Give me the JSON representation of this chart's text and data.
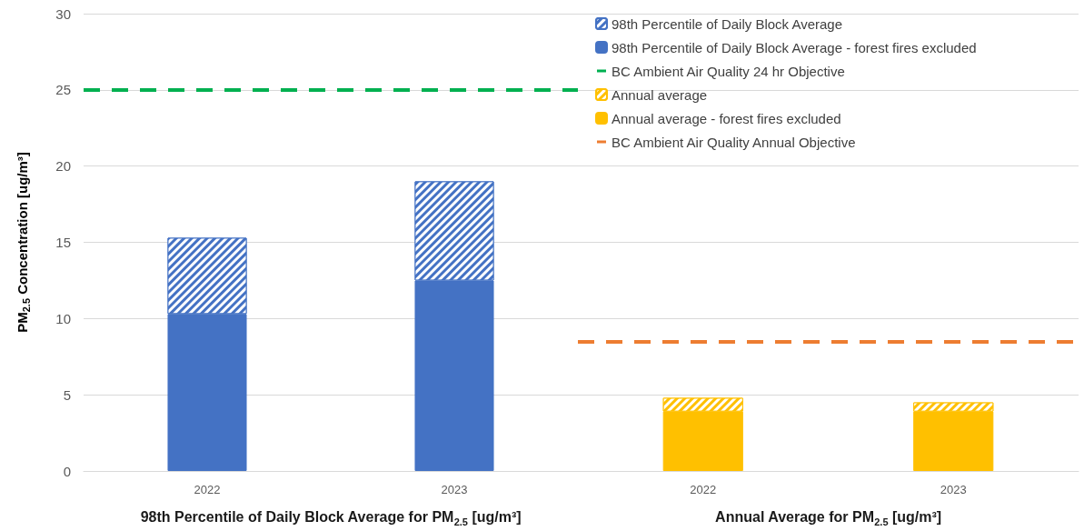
{
  "chart_data": [
    {
      "type": "bar",
      "stacked": true,
      "categories": [
        "2022",
        "2023"
      ],
      "xlabel": "98th Percentile of Daily Block Average for PM$_{2.5}$ [ug/m³]",
      "ylabel": "PM$_{2.5}$ Concentration [ug/m³]",
      "series": [
        {
          "name": "98th Percentile of Daily Block Average - forest fires excluded",
          "color": "#4472c4",
          "values": [
            10.3,
            12.5
          ]
        },
        {
          "name": "98th Percentile of Daily Block Average",
          "color": "#4472c4",
          "values": [
            5,
            6.5
          ]
        }
      ],
      "ylim": [
        0,
        30
      ],
      "yticks": [
        0,
        5,
        10,
        15,
        20,
        25,
        30
      ],
      "grid": "y",
      "legend": "right",
      "ref_lines": [
        {
          "axis": "y",
          "value": 25,
          "label": "BC Ambient Air Quality 24 hr Objective",
          "color": "#00b050",
          "line_style": "dashed"
        }
      ]
    },
    {
      "type": "bar",
      "stacked": true,
      "categories": [
        "2022",
        "2023"
      ],
      "xlabel": "Annual Average for PM$_{2.5}$ [ug/m³]",
      "series": [
        {
          "name": "Annual average - forest fires excluded",
          "color": "#ffc000",
          "values": [
            3.9,
            3.9
          ]
        },
        {
          "name": "Annual average",
          "color": "#ffc000",
          "values": [
            0.9,
            0.6
          ]
        }
      ],
      "ylim": [
        0,
        30
      ],
      "yticks": [
        0,
        5,
        10,
        15,
        20,
        25,
        30
      ],
      "grid": "y",
      "legend": "top",
      "tick_labels": "x",
      "ref_lines": [
        {
          "axis": "y",
          "value": 8.5,
          "label": "BC Ambient Air Quality Annual Objective",
          "color": "#ed7d31",
          "line_style": "dashed"
        }
      ]
    }
  ]
}
